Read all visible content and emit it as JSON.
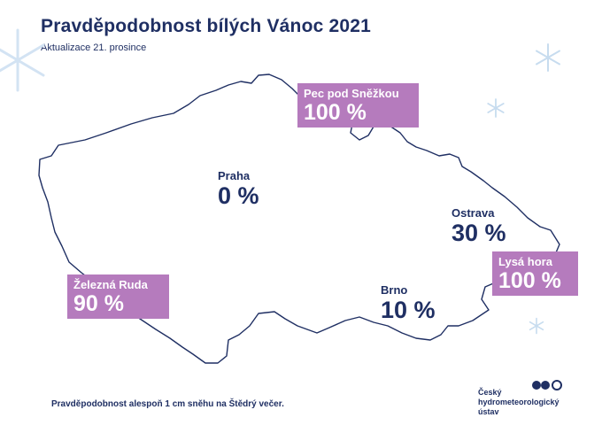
{
  "title": "Pravděpodobnost bílých Vánoc 2021",
  "subtitle": "Aktualizace 21. prosince",
  "colors": {
    "text": "#1f2f63",
    "highlight_box": "#b57bbd",
    "map_outline": "#1f2f63",
    "snowflake": "#c7dcef"
  },
  "locations": [
    {
      "name": "Praha",
      "value": "0 %",
      "highlighted": false
    },
    {
      "name": "Pec pod Sněžkou",
      "value": "100 %",
      "highlighted": true
    },
    {
      "name": "Ostrava",
      "value": "30 %",
      "highlighted": false
    },
    {
      "name": "Lysá hora",
      "value": "100 %",
      "highlighted": true
    },
    {
      "name": "Železná Ruda",
      "value": "90 %",
      "highlighted": true
    },
    {
      "name": "Brno",
      "value": "10 %",
      "highlighted": false
    }
  ],
  "footnote": "Pravděpodobnost alespoň 1 cm sněhu na Štědrý večer.",
  "logo": {
    "icon": "chmi-logo-icon",
    "line1": "Český",
    "line2": "hydrometeorologický",
    "line3": "ústav"
  },
  "decorations": [
    "snowflake-icon"
  ]
}
